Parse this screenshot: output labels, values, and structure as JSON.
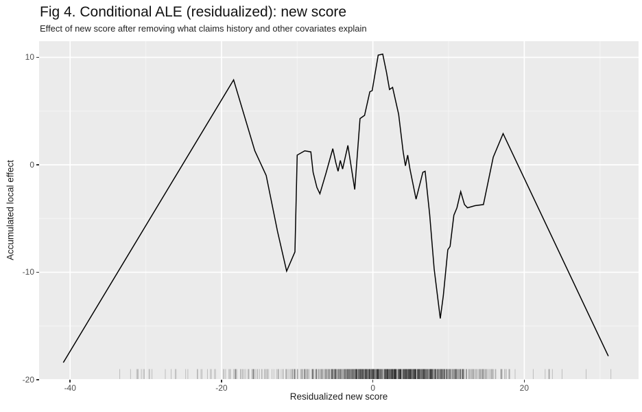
{
  "chart_data": {
    "type": "line",
    "title": "Fig 4. Conditional ALE (residualized): new score",
    "subtitle": "Effect of new score after removing what claims history and other covariates explain",
    "xlabel": "Residualized new score",
    "ylabel": "Accumulated local effect",
    "x_domain": [
      -44.1,
      35.1
    ],
    "y_domain": [
      -20.0,
      11.5
    ],
    "x_ticks": [
      -40,
      -20,
      0,
      20
    ],
    "y_ticks": [
      10,
      0,
      -10,
      -20
    ],
    "x_minor_ticks": [
      -30,
      -10,
      10,
      30
    ],
    "y_minor_ticks": [
      5,
      -5,
      -15
    ],
    "grid": "on",
    "legend": "none",
    "panel_bg": "#EBEBEB",
    "grid_major_color": "#FFFFFF",
    "grid_minor_color": "#F5F5F5",
    "line_color": "#000000",
    "axis_text_color": "#4D4D4D",
    "series": [
      {
        "name": "Accumulated local effect",
        "points": [
          [
            -40.9,
            -18.4
          ],
          [
            -18.4,
            7.9
          ],
          [
            -15.6,
            1.3
          ],
          [
            -14.1,
            -1.0
          ],
          [
            -12.6,
            -6.2
          ],
          [
            -11.4,
            -9.9
          ],
          [
            -10.3,
            -8.1
          ],
          [
            -10.0,
            0.9
          ],
          [
            -9.0,
            1.3
          ],
          [
            -8.2,
            1.2
          ],
          [
            -7.9,
            -0.7
          ],
          [
            -7.4,
            -2.1
          ],
          [
            -7.0,
            -2.7
          ],
          [
            -6.2,
            -0.8
          ],
          [
            -5.3,
            1.5
          ],
          [
            -4.9,
            0.2
          ],
          [
            -4.6,
            -0.6
          ],
          [
            -4.3,
            0.4
          ],
          [
            -4.0,
            -0.4
          ],
          [
            -3.3,
            1.8
          ],
          [
            -2.4,
            -2.3
          ],
          [
            -1.7,
            4.3
          ],
          [
            -1.1,
            4.6
          ],
          [
            -0.4,
            6.8
          ],
          [
            -0.1,
            6.9
          ],
          [
            0.7,
            10.2
          ],
          [
            1.3,
            10.3
          ],
          [
            1.8,
            8.6
          ],
          [
            2.2,
            7.0
          ],
          [
            2.6,
            7.2
          ],
          [
            3.4,
            4.7
          ],
          [
            4.0,
            1.2
          ],
          [
            4.3,
            -0.1
          ],
          [
            4.6,
            0.9
          ],
          [
            4.9,
            -0.4
          ],
          [
            5.7,
            -3.2
          ],
          [
            6.6,
            -0.7
          ],
          [
            6.9,
            -0.6
          ],
          [
            7.5,
            -4.6
          ],
          [
            8.1,
            -9.7
          ],
          [
            8.9,
            -14.3
          ],
          [
            9.3,
            -12.2
          ],
          [
            9.9,
            -7.9
          ],
          [
            10.2,
            -7.6
          ],
          [
            10.7,
            -4.7
          ],
          [
            11.1,
            -4.0
          ],
          [
            11.6,
            -2.5
          ],
          [
            12.1,
            -3.7
          ],
          [
            12.5,
            -4.0
          ],
          [
            13.5,
            -3.8
          ],
          [
            14.6,
            -3.7
          ],
          [
            15.9,
            0.7
          ],
          [
            17.2,
            2.9
          ],
          [
            31.1,
            -17.8
          ]
        ]
      }
    ],
    "rug": {
      "x_min": -40.9,
      "x_max": 33.5,
      "densest_range": [
        -8,
        10
      ],
      "count": 950,
      "mixture": [
        {
          "weight": 0.68,
          "mean": 3,
          "sd": 5.5
        },
        {
          "weight": 0.26,
          "mean": -1,
          "sd": 12
        },
        {
          "weight": 0.06,
          "mean": -12,
          "sd": 16
        }
      ]
    }
  }
}
